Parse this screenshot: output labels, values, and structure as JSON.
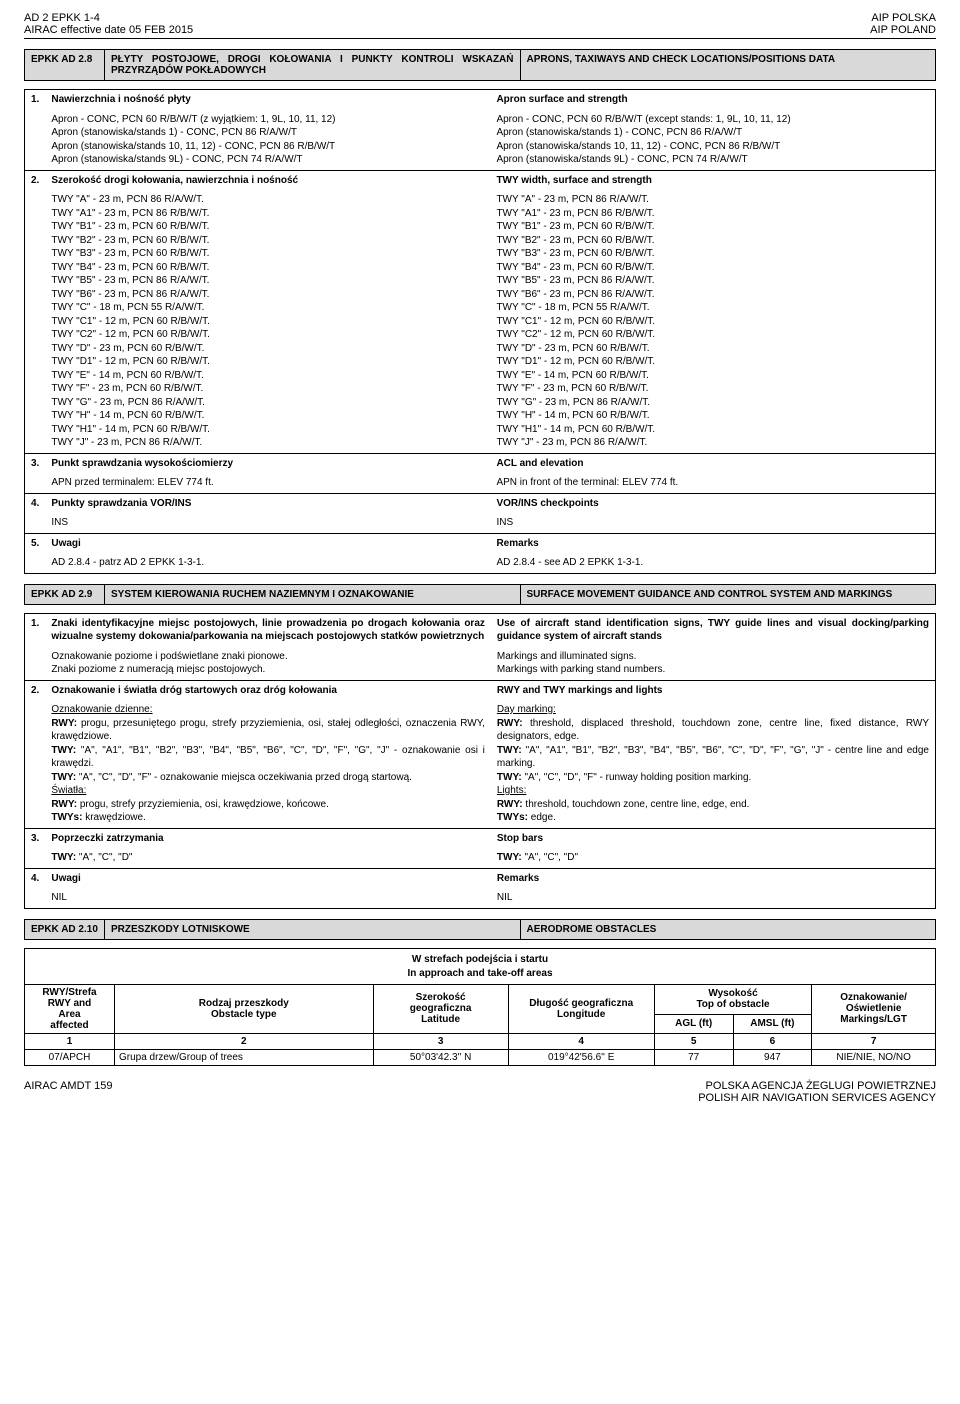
{
  "header": {
    "topLeft": "AD 2 EPKK 1-4",
    "dateLine": "AIRAC effective date  05 FEB 2015",
    "topRight1": "AIP POLSKA",
    "topRight2": "AIP POLAND"
  },
  "sec28": {
    "code": "EPKK  AD 2.8",
    "pl": "PŁYTY POSTOJOWE, DROGI KOŁOWANIA I PUNKTY KONTROLI WSKAZAŃ PRZYRZĄDÓW POKŁADOWYCH",
    "en": "APRONS, TAXIWAYS AND CHECK LOCATIONS/POSITIONS DATA",
    "rows": [
      {
        "n": "1.",
        "plTitle": "Nawierzchnia i nośność płyty",
        "enTitle": "Apron surface and strength",
        "plBody": [
          "Apron  -  CONC, PCN 60  R/B/W/T   (z wyjątkiem: 1, 9L, 10, 11, 12)",
          "Apron (stanowiska/stands 1)  -  CONC, PCN 86  R/A/W/T",
          "Apron (stanowiska/stands 10, 11, 12)  -  CONC, PCN 86  R/B/W/T",
          "Apron (stanowiska/stands 9L)  -  CONC, PCN 74  R/A/W/T"
        ],
        "enBody": [
          "Apron  -  CONC, PCN 60  R/B/W/T    (except stands: 1, 9L, 10, 11, 12)",
          "Apron (stanowiska/stands 1)  -  CONC, PCN 86  R/A/W/T",
          "Apron (stanowiska/stands 10, 11, 12)  -  CONC, PCN 86  R/B/W/T",
          "Apron (stanowiska/stands 9L)  -  CONC, PCN 74  R/A/W/T"
        ]
      },
      {
        "n": "2.",
        "plTitle": "Szerokość drogi kołowania, nawierzchnia i nośność",
        "enTitle": "TWY width, surface and strength",
        "plBody": [
          "TWY \"A\"  - 23 m, PCN 86  R/A/W/T.",
          "TWY \"A1\"  - 23 m, PCN 86  R/B/W/T.",
          "TWY \"B1\"  - 23 m, PCN 60  R/B/W/T.",
          "TWY \"B2\"  - 23 m, PCN 60  R/B/W/T.",
          "TWY \"B3\"  - 23 m, PCN 60  R/B/W/T.",
          "TWY \"B4\"  - 23 m, PCN 60  R/B/W/T.",
          "TWY \"B5\"  - 23 m, PCN 86  R/A/W/T.",
          "TWY \"B6\"  - 23 m, PCN 86  R/A/W/T.",
          "TWY \"C\"  - 18 m, PCN 55  R/A/W/T.",
          "TWY \"C1\"  - 12 m, PCN 60  R/B/W/T.",
          "TWY \"C2\"  - 12 m, PCN 60  R/B/W/T.",
          "TWY \"D\"  - 23 m, PCN 60  R/B/W/T.",
          "TWY \"D1\"  - 12 m, PCN 60  R/B/W/T.",
          "TWY \"E\"  - 14 m, PCN 60  R/B/W/T.",
          "TWY \"F\"  - 23 m, PCN 60  R/B/W/T.",
          "TWY \"G\"  - 23 m, PCN 86  R/A/W/T.",
          "TWY \"H\"  - 14 m, PCN 60  R/B/W/T.",
          "TWY \"H1\"  - 14 m, PCN 60  R/B/W/T.",
          "TWY \"J\"  - 23 m, PCN 86  R/A/W/T."
        ],
        "enBody": [
          "TWY \"A\"  - 23 m, PCN 86  R/A/W/T.",
          "TWY \"A1\"  - 23 m, PCN 86  R/B/W/T.",
          "TWY \"B1\"  - 23 m, PCN 60  R/B/W/T.",
          "TWY \"B2\"  - 23 m, PCN 60  R/B/W/T.",
          "TWY \"B3\"  - 23 m, PCN 60  R/B/W/T.",
          "TWY \"B4\"  - 23 m, PCN 60  R/B/W/T.",
          "TWY \"B5\"  - 23 m, PCN 86  R/A/W/T.",
          "TWY \"B6\"  - 23 m, PCN 86  R/A/W/T.",
          "TWY \"C\"  - 18 m, PCN 55  R/A/W/T.",
          "TWY \"C1\"  - 12 m, PCN 60  R/B/W/T.",
          "TWY \"C2\"  - 12 m, PCN 60  R/B/W/T.",
          "TWY \"D\"  - 23 m, PCN 60  R/B/W/T.",
          "TWY \"D1\"  - 12 m, PCN 60  R/B/W/T.",
          "TWY \"E\"  - 14 m, PCN 60  R/B/W/T.",
          "TWY \"F\"  - 23 m, PCN 60  R/B/W/T.",
          "TWY \"G\"  - 23 m, PCN 86  R/A/W/T.",
          "TWY \"H\"  - 14 m, PCN 60  R/B/W/T.",
          "TWY \"H1\"  - 14 m, PCN 60  R/B/W/T.",
          "TWY \"J\"  - 23 m, PCN 86  R/A/W/T."
        ]
      },
      {
        "n": "3.",
        "plTitle": "Punkt sprawdzania wysokościomierzy",
        "enTitle": "ACL and elevation",
        "plBody": [
          "APN przed terminalem: ELEV 774 ft."
        ],
        "enBody": [
          "APN in front of the terminal: ELEV 774 ft."
        ]
      },
      {
        "n": "4.",
        "plTitle": "Punkty sprawdzania VOR/INS",
        "enTitle": "VOR/INS checkpoints",
        "plBody": [
          "INS"
        ],
        "enBody": [
          "INS"
        ]
      },
      {
        "n": "5.",
        "plTitle": "Uwagi",
        "enTitle": "Remarks",
        "plBody": [
          "AD 2.8.4 - patrz AD 2 EPKK 1-3-1."
        ],
        "enBody": [
          "AD 2.8.4 - see AD 2 EPKK 1-3-1."
        ]
      }
    ]
  },
  "sec29": {
    "code": "EPKK  AD 2.9",
    "pl": "SYSTEM KIEROWANIA RUCHEM NAZIEMNYM I OZNAKOWANIE",
    "en": "SURFACE MOVEMENT GUIDANCE AND CONTROL SYSTEM AND MARKINGS",
    "rows": [
      {
        "n": "1.",
        "plTitle": "Znaki identyfikacyjne miejsc postojowych, linie prowadzenia po drogach kołowania oraz wizualne systemy dokowania/parkowania na miejscach postojowych statków powietrznych",
        "enTitle": "Use of aircraft stand identification signs, TWY guide lines and visual docking/parking guidance system of aircraft stands",
        "plBody": [
          "Oznakowanie poziome i podświetlane znaki pionowe.",
          "Znaki poziome z numeracją miejsc postojowych."
        ],
        "enBody": [
          "Markings and illuminated signs.",
          "Markings with parking stand numbers."
        ]
      },
      {
        "n": "2.",
        "plTitle": "Oznakowanie i światła dróg startowych oraz dróg kołowania",
        "enTitle": "RWY and TWY markings and lights",
        "plHTML": "<u>Oznakowanie dzienne:</u><br><b>RWY:</b> progu, przesuniętego progu, strefy przyziemieniа, osi, stałej odległości, oznaczenia RWY, krawędziowe.<br><b>TWY:</b> \"A\", \"A1\", \"B1\", \"B2\", \"B3\", \"B4\", \"B5\", \"B6\", \"C\", \"D\", \"F\", \"G\", \"J\" - oznakowanie osi i krawędzi.<br><b>TWY:</b> \"A\", \"C\", \"D\", \"F\" - oznakowanie miejsca oczekiwania przed drogą startową.<br><u>Światła:</u><br><b>RWY:</b> progu, strefy przyziemieniа, osi, krawędziowe, końcowe.<br><b>TWYs:</b> krawędziowe.",
        "enHTML": "<u>Day marking:</u><br><b>RWY:</b> threshold, displaced threshold, touchdown zone, centre line, fixed distance, RWY designators, edge.<br><b>TWY:</b> \"A\", \"A1\", \"B1\", \"B2\", \"B3\", \"B4\", \"B5\", \"B6\", \"C\", \"D\", \"F\", \"G\", \"J\" - centre line and edge marking.<br><b>TWY:</b> \"A\", \"C\", \"D\", \"F\" - runway holding position marking.<br><u>Lights:</u><br><b>RWY:</b> threshold, touchdown zone, centre line, edge, end.<br><b>TWYs:</b> edge."
      },
      {
        "n": "3.",
        "plTitle": "Poprzeczki zatrzymania",
        "enTitle": "Stop bars",
        "plHTML": "<b>TWY:</b> \"A\", \"C\", \"D\"",
        "enHTML": "<b>TWY:</b> \"A\", \"C\", \"D\""
      },
      {
        "n": "4.",
        "plTitle": "Uwagi",
        "enTitle": "Remarks",
        "plBody": [
          "NIL"
        ],
        "enBody": [
          "NIL"
        ]
      }
    ]
  },
  "sec210": {
    "code": "EPKK  AD 2.10",
    "pl": "PRZESZKODY LOTNISKOWE",
    "en": "AERODROME OBSTACLES"
  },
  "obs": {
    "captionPL": "W strefach podejścia i startu",
    "captionEN": "In approach and take-off areas",
    "headers": {
      "c1a": "RWY/Strefa",
      "c1b": "RWY and",
      "c1c": "Area",
      "c1d": "affected",
      "c2a": "Rodzaj przeszkody",
      "c2b": "Obstacle type",
      "c3a": "Szerokość",
      "c3b": "geograficzna",
      "c3c": "Latitude",
      "c4a": "Długość geograficzna",
      "c4b": "Longitude",
      "c5a": "Wysokość",
      "c5b": "Top of obstacle",
      "c5sub1": "AGL (ft)",
      "c5sub2": "AMSL (ft)",
      "c6a": "Oznakowanie/",
      "c6b": "Oświetlenie",
      "c6c": "Markings/LGT"
    },
    "numRow": [
      "1",
      "2",
      "3",
      "4",
      "5",
      "6",
      "7"
    ],
    "dataRow": {
      "c1": "07/APCH",
      "c2": "Grupa drzew/Group of trees",
      "c3": "50°03'42.3'' N",
      "c4": "019°42'56.6'' E",
      "c5": "77",
      "c6": "947",
      "c7": "NIE/NIE,  NO/NO"
    }
  },
  "footer": {
    "left": "AIRAC AMDT  159",
    "right1": "POLSKA AGENCJA ŻEGLUGI POWIETRZNEJ",
    "right2": "POLISH AIR NAVIGATION SERVICES AGENCY"
  }
}
